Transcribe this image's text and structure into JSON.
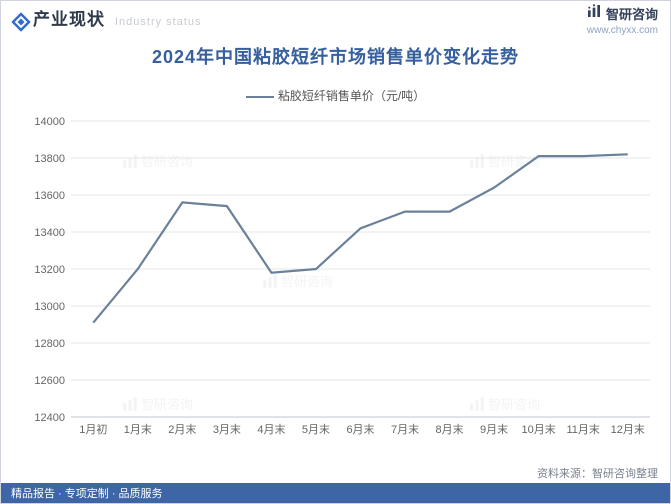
{
  "header": {
    "title_cn": "产业现状",
    "title_en": "Industry status",
    "accent_color": "#2f6bd0"
  },
  "brand": {
    "name": "智研咨询",
    "url": "www.chyxx.com",
    "icon_color": "#33405a"
  },
  "chart": {
    "type": "line",
    "title": "2024年中国粘胶短纤市场销售单价变化走势",
    "title_color": "#355f9e",
    "title_fontsize": 18,
    "legend_label": "粘胶短纤销售单价（元/吨）",
    "line_color": "#6b8199",
    "line_width": 2.2,
    "background_color": "#ffffff",
    "grid_color": "#e2e5ea",
    "axis_color": "#bfc5cd",
    "ylim": [
      12400,
      14000
    ],
    "ytick_step": 200,
    "yticks": [
      12400,
      12600,
      12800,
      13000,
      13200,
      13400,
      13600,
      13800,
      14000
    ],
    "categories": [
      "1月初",
      "1月末",
      "2月末",
      "3月末",
      "4月末",
      "5月末",
      "6月末",
      "7月末",
      "8月末",
      "9月末",
      "10月末",
      "11月末",
      "12月末"
    ],
    "values": [
      12910,
      13200,
      13560,
      13540,
      13180,
      13200,
      13420,
      13510,
      13510,
      13640,
      13810,
      13810,
      13820
    ],
    "tick_fontsize": 11,
    "tick_color": "#666666"
  },
  "footer": {
    "bg_color": "#3e65a6",
    "text_color": "#ffffff",
    "items": [
      "精品报告",
      "专项定制",
      "品质服务"
    ],
    "sep": " · "
  },
  "source": {
    "label": "资料来源：",
    "value": "智研咨询整理"
  },
  "watermark": "智研咨询"
}
